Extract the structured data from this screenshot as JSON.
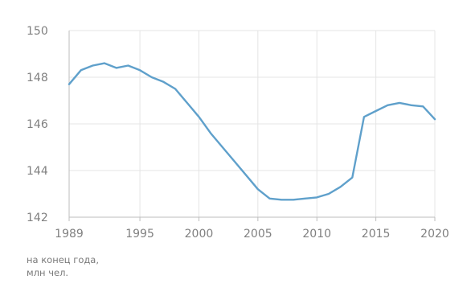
{
  "chart_data": {
    "type": "line",
    "title": "",
    "xlabel": "",
    "ylabel": "",
    "xlim": [
      1989,
      2020
    ],
    "ylim": [
      142,
      150
    ],
    "x_ticks": [
      1989,
      1995,
      2000,
      2005,
      2010,
      2015,
      2020
    ],
    "y_ticks": [
      142,
      144,
      146,
      148,
      150
    ],
    "grid": true,
    "line_color": "#5fa0cb",
    "footnote": [
      "на конец года,",
      "млн чел."
    ],
    "series": [
      {
        "x": [
          1989,
          1990,
          1991,
          1992,
          1993,
          1994,
          1995,
          1996,
          1997,
          1998,
          1999,
          2000,
          2001,
          2002,
          2003,
          2004,
          2005,
          2006,
          2007,
          2008,
          2009,
          2010,
          2011,
          2012,
          2013,
          2014,
          2015,
          2016,
          2017,
          2018,
          2019,
          2020
        ],
        "y": [
          147.7,
          148.3,
          148.5,
          148.6,
          148.4,
          148.5,
          148.3,
          148.0,
          147.8,
          147.5,
          146.9,
          146.3,
          145.6,
          145.0,
          144.4,
          143.8,
          143.2,
          142.8,
          142.75,
          142.75,
          142.8,
          142.85,
          143.0,
          143.3,
          143.7,
          146.3,
          146.55,
          146.8,
          146.9,
          146.8,
          146.75,
          146.2
        ]
      }
    ]
  }
}
